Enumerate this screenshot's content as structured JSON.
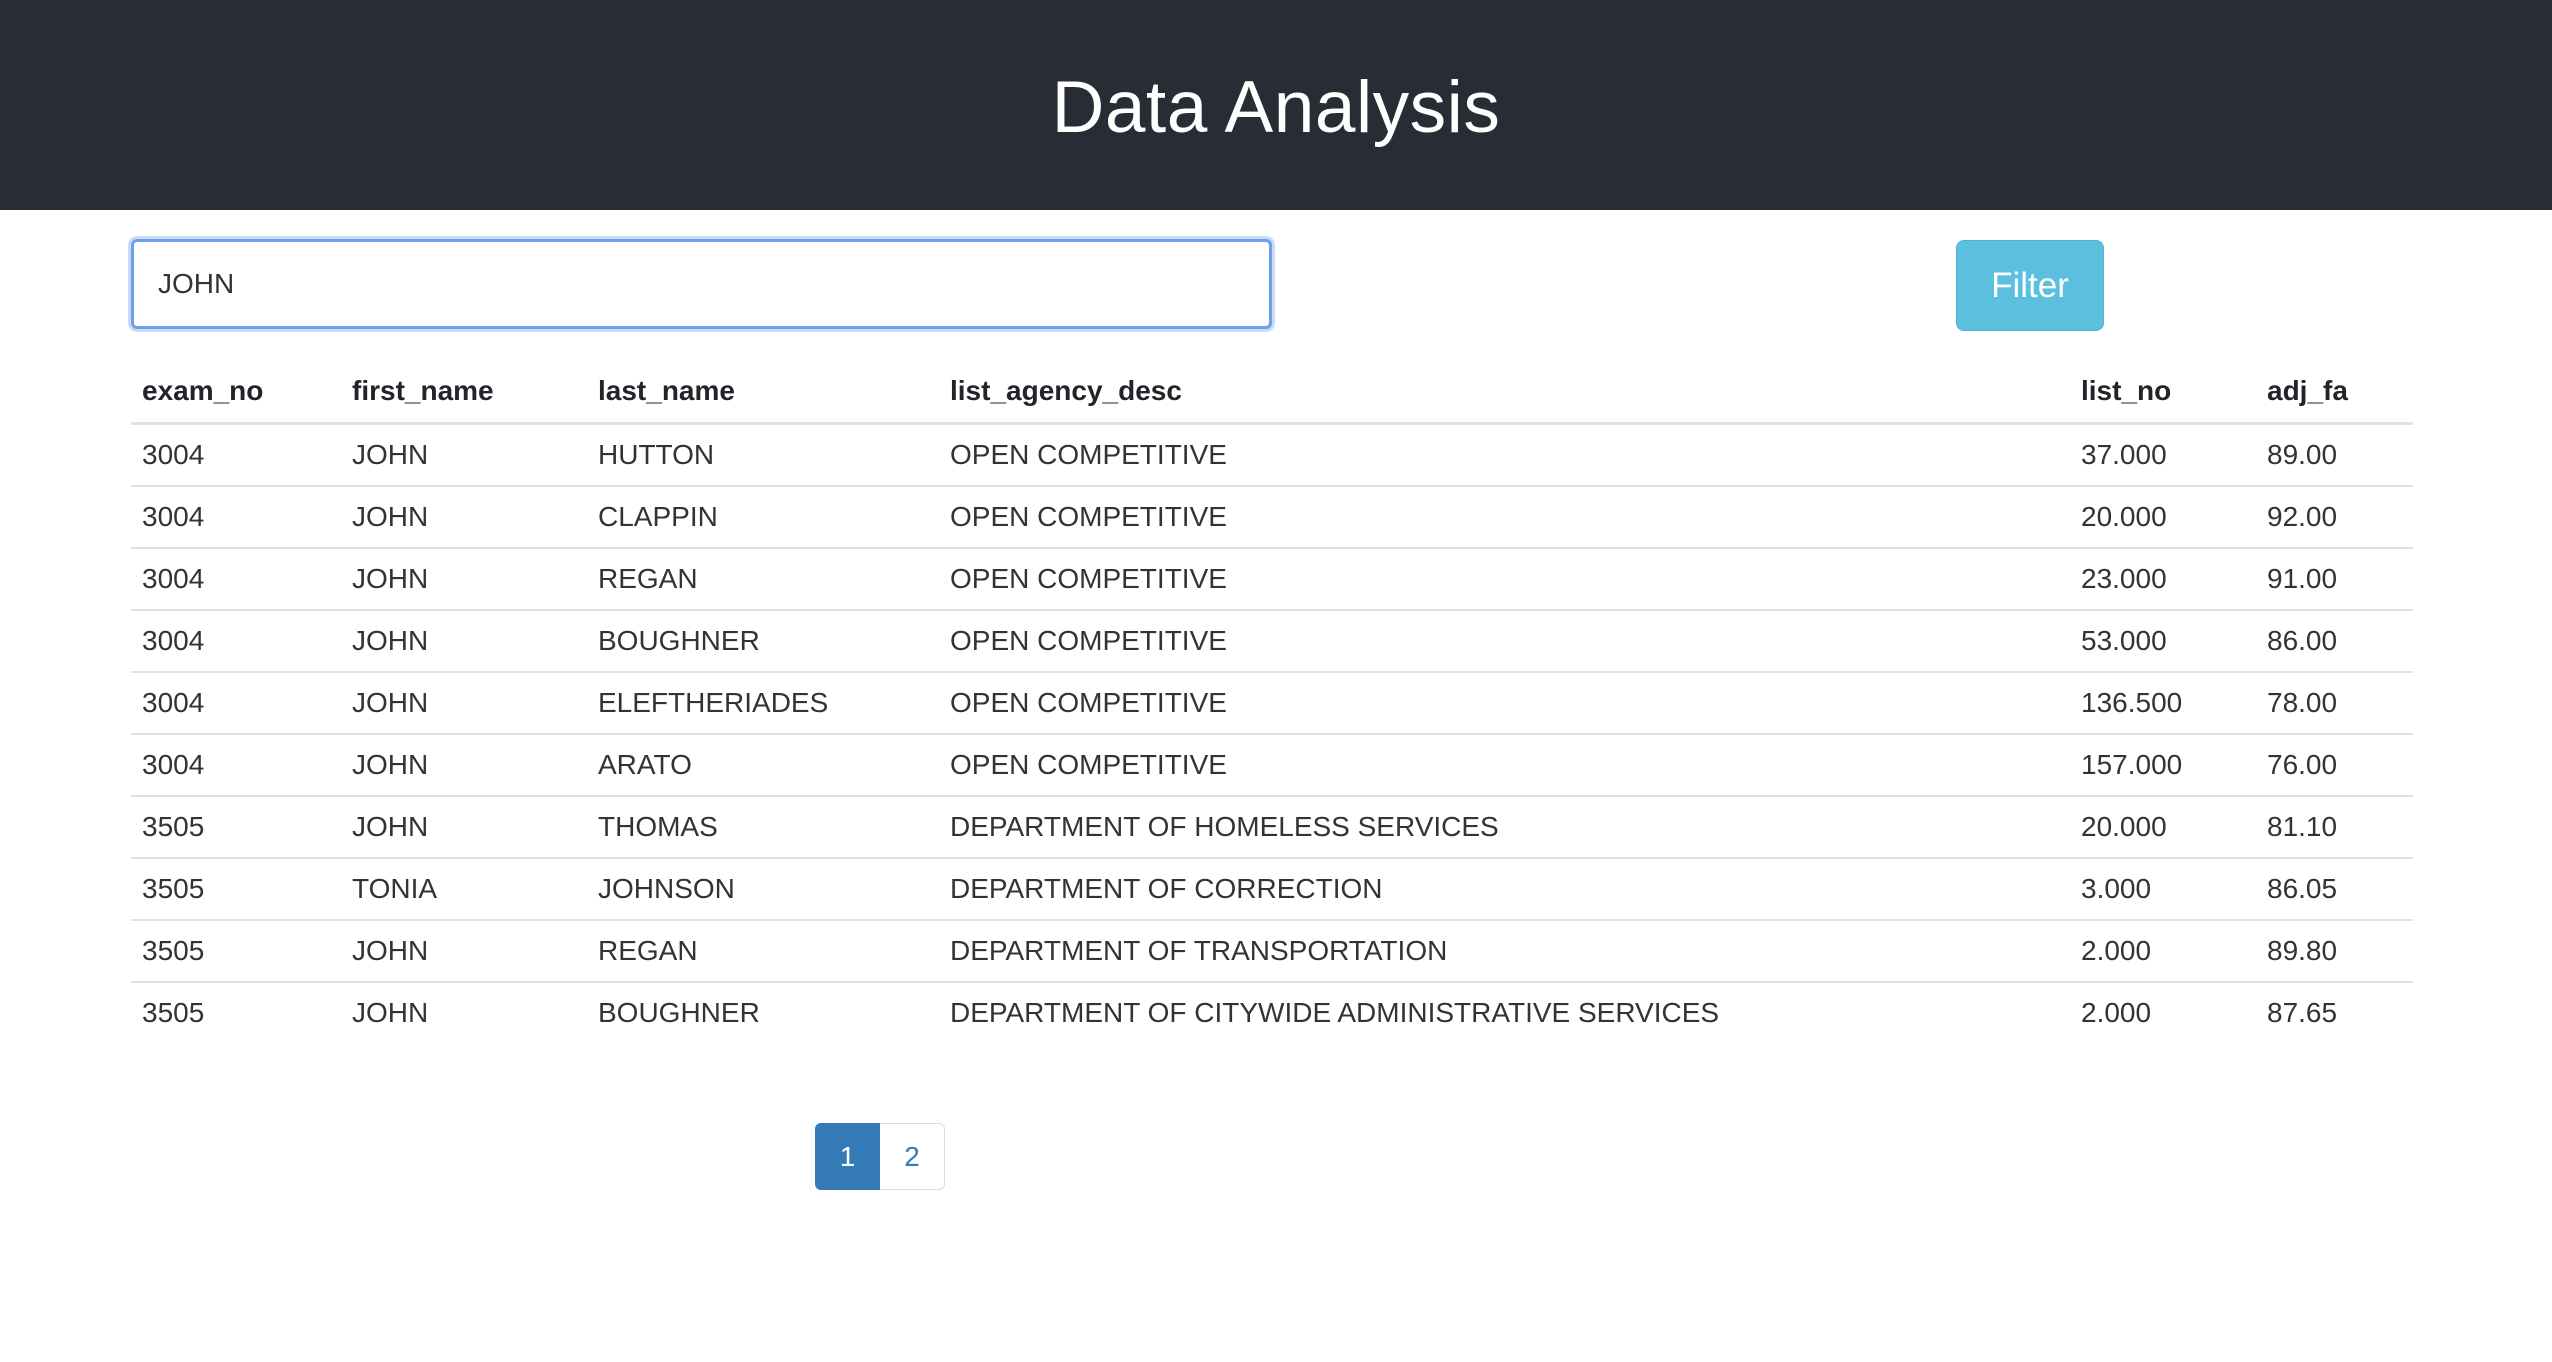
{
  "header": {
    "title": "Data Analysis"
  },
  "search": {
    "value": "JOHN",
    "placeholder": ""
  },
  "toolbar": {
    "filter_label": "Filter"
  },
  "table": {
    "columns": [
      "exam_no",
      "first_name",
      "last_name",
      "list_agency_desc",
      "list_no",
      "adj_fa"
    ],
    "rows": [
      [
        "3004",
        "JOHN",
        "HUTTON",
        "OPEN COMPETITIVE",
        "37.000",
        "89.00"
      ],
      [
        "3004",
        "JOHN",
        "CLAPPIN",
        "OPEN COMPETITIVE",
        "20.000",
        "92.00"
      ],
      [
        "3004",
        "JOHN",
        "REGAN",
        "OPEN COMPETITIVE",
        "23.000",
        "91.00"
      ],
      [
        "3004",
        "JOHN",
        "BOUGHNER",
        "OPEN COMPETITIVE",
        "53.000",
        "86.00"
      ],
      [
        "3004",
        "JOHN",
        "ELEFTHERIADES",
        "OPEN COMPETITIVE",
        "136.500",
        "78.00"
      ],
      [
        "3004",
        "JOHN",
        "ARATO",
        "OPEN COMPETITIVE",
        "157.000",
        "76.00"
      ],
      [
        "3505",
        "JOHN",
        "THOMAS",
        "DEPARTMENT OF HOMELESS SERVICES",
        "20.000",
        "81.10"
      ],
      [
        "3505",
        "TONIA",
        "JOHNSON",
        "DEPARTMENT OF CORRECTION",
        "3.000",
        "86.05"
      ],
      [
        "3505",
        "JOHN",
        "REGAN",
        "DEPARTMENT OF TRANSPORTATION",
        "2.000",
        "89.80"
      ],
      [
        "3505",
        "JOHN",
        "BOUGHNER",
        "DEPARTMENT OF CITYWIDE ADMINISTRATIVE SERVICES",
        "2.000",
        "87.65"
      ]
    ]
  },
  "pagination": {
    "pages": [
      "1",
      "2"
    ],
    "current": "1"
  },
  "colors": {
    "header_bg": "#282c34",
    "filter_button": "#5bc0de",
    "active_page": "#337ab7"
  }
}
